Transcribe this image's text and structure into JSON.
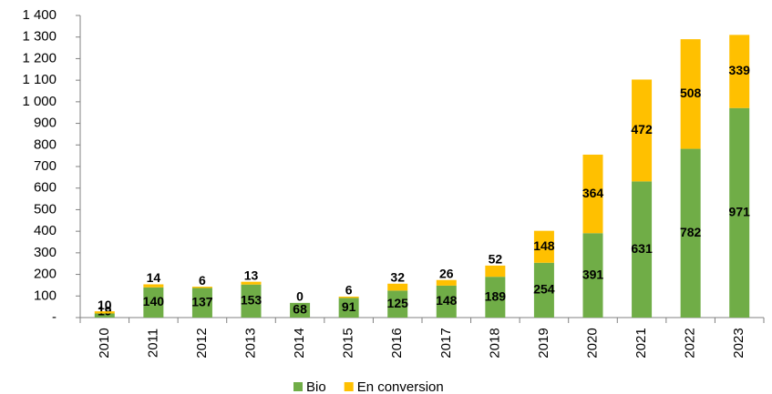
{
  "chart_data": {
    "type": "stacked_bar",
    "categories": [
      "2010",
      "2011",
      "2012",
      "2013",
      "2014",
      "2015",
      "2016",
      "2017",
      "2018",
      "2019",
      "2020",
      "2021",
      "2022",
      "2023"
    ],
    "series": [
      {
        "name": "Bio",
        "color": "#70ad47",
        "values": [
          19,
          140,
          137,
          153,
          68,
          91,
          125,
          148,
          189,
          254,
          391,
          631,
          782,
          971
        ]
      },
      {
        "name": "En conversion",
        "color": "#ffc000",
        "values": [
          10,
          14,
          6,
          13,
          0,
          6,
          32,
          26,
          52,
          148,
          364,
          472,
          508,
          339
        ]
      }
    ],
    "ylim": [
      0,
      1400
    ],
    "yticks": [
      {
        "value": 0,
        "label": "-"
      },
      100,
      200,
      300,
      400,
      500,
      600,
      700,
      800,
      900,
      {
        "value": 1000,
        "label": "1 000"
      },
      {
        "value": 1100,
        "label": "1 100"
      },
      {
        "value": 1200,
        "label": "1 200"
      },
      {
        "value": 1300,
        "label": "1 300"
      },
      {
        "value": 1400,
        "label": "1 400"
      }
    ],
    "legend": "bottom"
  }
}
